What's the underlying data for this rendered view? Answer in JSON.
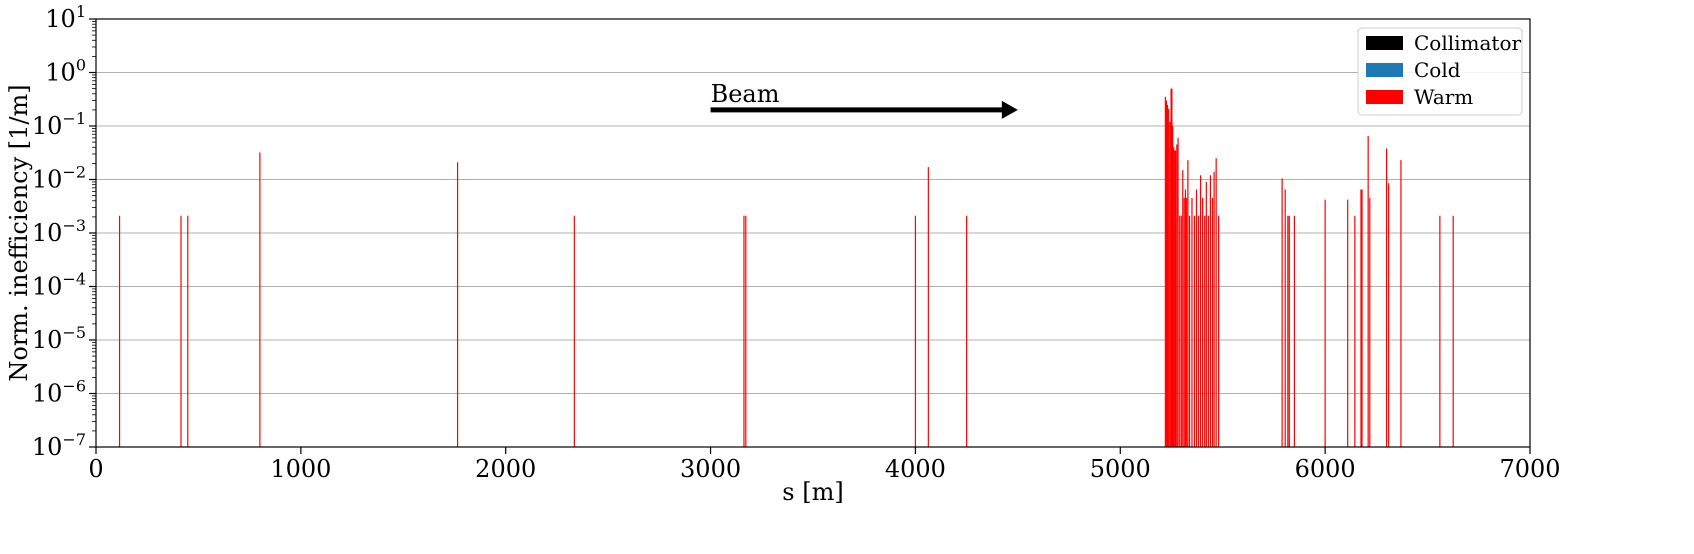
{
  "chart_data": {
    "type": "bar",
    "xlabel": "s [m]",
    "ylabel": "Norm. inefficiency [1/m]",
    "xlim": [
      0,
      7000
    ],
    "ylim": [
      1e-07,
      10
    ],
    "yscale": "log",
    "xticks": [
      0,
      1000,
      2000,
      3000,
      4000,
      5000,
      6000,
      7000
    ],
    "yticks_exponents": [
      -7,
      -6,
      -5,
      -4,
      -3,
      -2,
      -1,
      0,
      1
    ],
    "ytick_base": "10",
    "grid": "y-major",
    "legend_placement": "top-right",
    "legend": [
      {
        "label": "Collimator",
        "color": "#000000"
      },
      {
        "label": "Cold",
        "color": "#1f77b4"
      },
      {
        "label": "Warm",
        "color": "#ff0000"
      }
    ],
    "annotation": {
      "text": "Beam",
      "arrow_from": [
        3000,
        0.2
      ],
      "arrow_to": [
        4500,
        0.2
      ]
    },
    "series": [
      {
        "category": "Warm",
        "color": "#ff0000",
        "points": [
          [
            115,
            0.0021
          ],
          [
            415,
            0.0021
          ],
          [
            448,
            0.0021
          ],
          [
            800,
            0.032
          ],
          [
            1765,
            0.021
          ],
          [
            2335,
            0.0021
          ],
          [
            3163,
            0.0021
          ],
          [
            3172,
            0.0021
          ],
          [
            4000,
            0.0021
          ],
          [
            4063,
            0.017
          ],
          [
            4250,
            0.0021
          ],
          [
            5220,
            0.35
          ],
          [
            5225,
            0.3
          ],
          [
            5230,
            0.25
          ],
          [
            5236,
            0.21
          ],
          [
            5242,
            0.12
          ],
          [
            5248,
            0.5
          ],
          [
            5252,
            0.5
          ],
          [
            5256,
            0.1
          ],
          [
            5260,
            0.04
          ],
          [
            5264,
            0.035
          ],
          [
            5270,
            0.035
          ],
          [
            5276,
            0.045
          ],
          [
            5282,
            0.06
          ],
          [
            5290,
            0.0021
          ],
          [
            5298,
            0.0021
          ],
          [
            5305,
            0.015
          ],
          [
            5312,
            0.0045
          ],
          [
            5318,
            0.0065
          ],
          [
            5324,
            0.0045
          ],
          [
            5330,
            0.023
          ],
          [
            5338,
            0.0021
          ],
          [
            5350,
            0.0045
          ],
          [
            5362,
            0.0021
          ],
          [
            5372,
            0.0065
          ],
          [
            5382,
            0.0021
          ],
          [
            5392,
            0.012
          ],
          [
            5402,
            0.0045
          ],
          [
            5412,
            0.0021
          ],
          [
            5420,
            0.009
          ],
          [
            5430,
            0.0021
          ],
          [
            5440,
            0.012
          ],
          [
            5450,
            0.0045
          ],
          [
            5458,
            0.014
          ],
          [
            5468,
            0.025
          ],
          [
            5480,
            0.0021
          ],
          [
            5790,
            0.0105
          ],
          [
            5805,
            0.0065
          ],
          [
            5818,
            0.0021
          ],
          [
            5825,
            0.0021
          ],
          [
            5850,
            0.0021
          ],
          [
            6000,
            0.0042
          ],
          [
            6110,
            0.0042
          ],
          [
            6145,
            0.0021
          ],
          [
            6175,
            0.0065
          ],
          [
            6180,
            0.0065
          ],
          [
            6210,
            0.065
          ],
          [
            6218,
            0.0045
          ],
          [
            6300,
            0.038
          ],
          [
            6310,
            0.0085
          ],
          [
            6370,
            0.023
          ],
          [
            6560,
            0.0021
          ],
          [
            6625,
            0.0021
          ]
        ]
      }
    ]
  }
}
